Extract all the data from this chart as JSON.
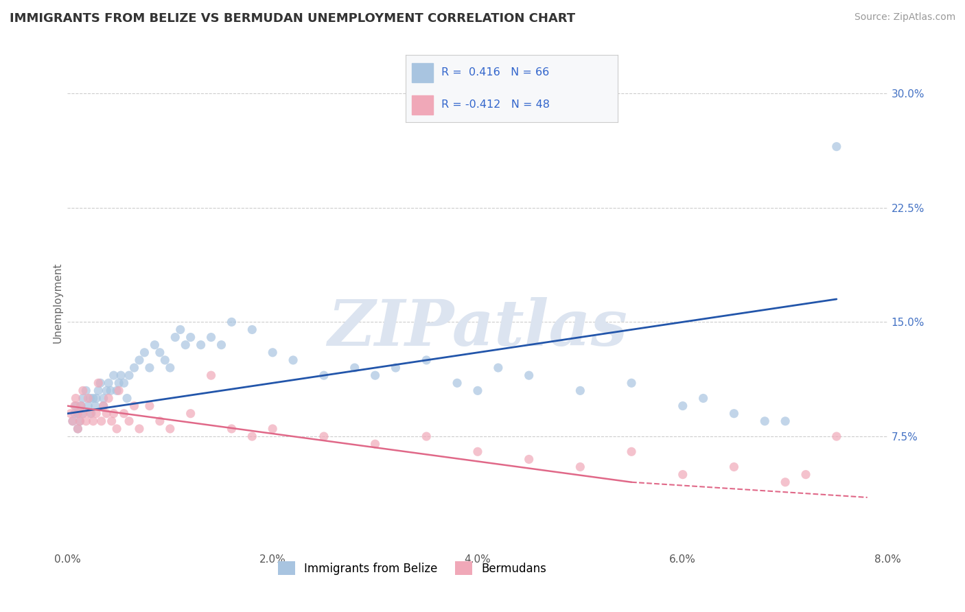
{
  "title": "IMMIGRANTS FROM BELIZE VS BERMUDAN UNEMPLOYMENT CORRELATION CHART",
  "source": "Source: ZipAtlas.com",
  "xlabel_vals": [
    0.0,
    2.0,
    4.0,
    6.0,
    8.0
  ],
  "ylabel_vals": [
    7.5,
    15.0,
    22.5,
    30.0
  ],
  "xlim": [
    0.0,
    8.0
  ],
  "ylim": [
    0.0,
    32.5
  ],
  "blue_color": "#a8c4e0",
  "pink_color": "#f0a8b8",
  "blue_line_color": "#2255aa",
  "pink_line_color": "#e06888",
  "legend_blue_R": "0.416",
  "legend_blue_N": "66",
  "legend_pink_R": "-0.412",
  "legend_pink_N": "48",
  "legend_label_blue": "Immigrants from Belize",
  "legend_label_pink": "Bermudans",
  "watermark": "ZIPatlas",
  "watermark_color": "#dce4f0",
  "background_color": "#ffffff",
  "grid_color": "#cccccc",
  "blue_scatter_x": [
    0.05,
    0.07,
    0.08,
    0.1,
    0.1,
    0.12,
    0.13,
    0.15,
    0.15,
    0.18,
    0.2,
    0.22,
    0.23,
    0.25,
    0.27,
    0.28,
    0.3,
    0.32,
    0.35,
    0.35,
    0.38,
    0.4,
    0.42,
    0.45,
    0.48,
    0.5,
    0.52,
    0.55,
    0.58,
    0.6,
    0.65,
    0.7,
    0.75,
    0.8,
    0.85,
    0.9,
    0.95,
    1.0,
    1.05,
    1.1,
    1.15,
    1.2,
    1.3,
    1.4,
    1.5,
    1.6,
    1.8,
    2.0,
    2.2,
    2.5,
    2.8,
    3.0,
    3.2,
    3.5,
    3.8,
    4.0,
    4.2,
    4.5,
    5.0,
    5.5,
    6.0,
    6.2,
    6.5,
    6.8,
    7.0,
    7.5
  ],
  "blue_scatter_y": [
    8.5,
    9.0,
    9.5,
    9.0,
    8.0,
    8.5,
    9.5,
    10.0,
    9.0,
    10.5,
    9.5,
    10.0,
    9.0,
    10.0,
    9.5,
    10.0,
    10.5,
    11.0,
    10.0,
    9.5,
    10.5,
    11.0,
    10.5,
    11.5,
    10.5,
    11.0,
    11.5,
    11.0,
    10.0,
    11.5,
    12.0,
    12.5,
    13.0,
    12.0,
    13.5,
    13.0,
    12.5,
    12.0,
    14.0,
    14.5,
    13.5,
    14.0,
    13.5,
    14.0,
    13.5,
    15.0,
    14.5,
    13.0,
    12.5,
    11.5,
    12.0,
    11.5,
    12.0,
    12.5,
    11.0,
    10.5,
    12.0,
    11.5,
    10.5,
    11.0,
    9.5,
    10.0,
    9.0,
    8.5,
    8.5,
    26.5
  ],
  "pink_scatter_x": [
    0.03,
    0.05,
    0.07,
    0.08,
    0.1,
    0.1,
    0.12,
    0.13,
    0.15,
    0.15,
    0.18,
    0.2,
    0.22,
    0.25,
    0.28,
    0.3,
    0.33,
    0.35,
    0.38,
    0.4,
    0.43,
    0.45,
    0.48,
    0.5,
    0.55,
    0.6,
    0.65,
    0.7,
    0.8,
    0.9,
    1.0,
    1.2,
    1.4,
    1.6,
    1.8,
    2.0,
    2.5,
    3.0,
    3.5,
    4.0,
    4.5,
    5.0,
    5.5,
    6.0,
    6.5,
    7.0,
    7.2,
    7.5
  ],
  "pink_scatter_y": [
    9.0,
    8.5,
    9.5,
    10.0,
    9.0,
    8.0,
    8.5,
    9.5,
    10.5,
    9.0,
    8.5,
    10.0,
    9.0,
    8.5,
    9.0,
    11.0,
    8.5,
    9.5,
    9.0,
    10.0,
    8.5,
    9.0,
    8.0,
    10.5,
    9.0,
    8.5,
    9.5,
    8.0,
    9.5,
    8.5,
    8.0,
    9.0,
    11.5,
    8.0,
    7.5,
    8.0,
    7.5,
    7.0,
    7.5,
    6.5,
    6.0,
    5.5,
    6.5,
    5.0,
    5.5,
    4.5,
    5.0,
    7.5
  ],
  "blue_line_x0": 0.0,
  "blue_line_y0": 9.0,
  "blue_line_x1": 7.5,
  "blue_line_y1": 16.5,
  "pink_solid_x0": 0.0,
  "pink_solid_y0": 9.5,
  "pink_solid_x1": 5.5,
  "pink_solid_y1": 4.5,
  "pink_dash_x0": 5.5,
  "pink_dash_y0": 4.5,
  "pink_dash_x1": 7.8,
  "pink_dash_y1": 3.5
}
